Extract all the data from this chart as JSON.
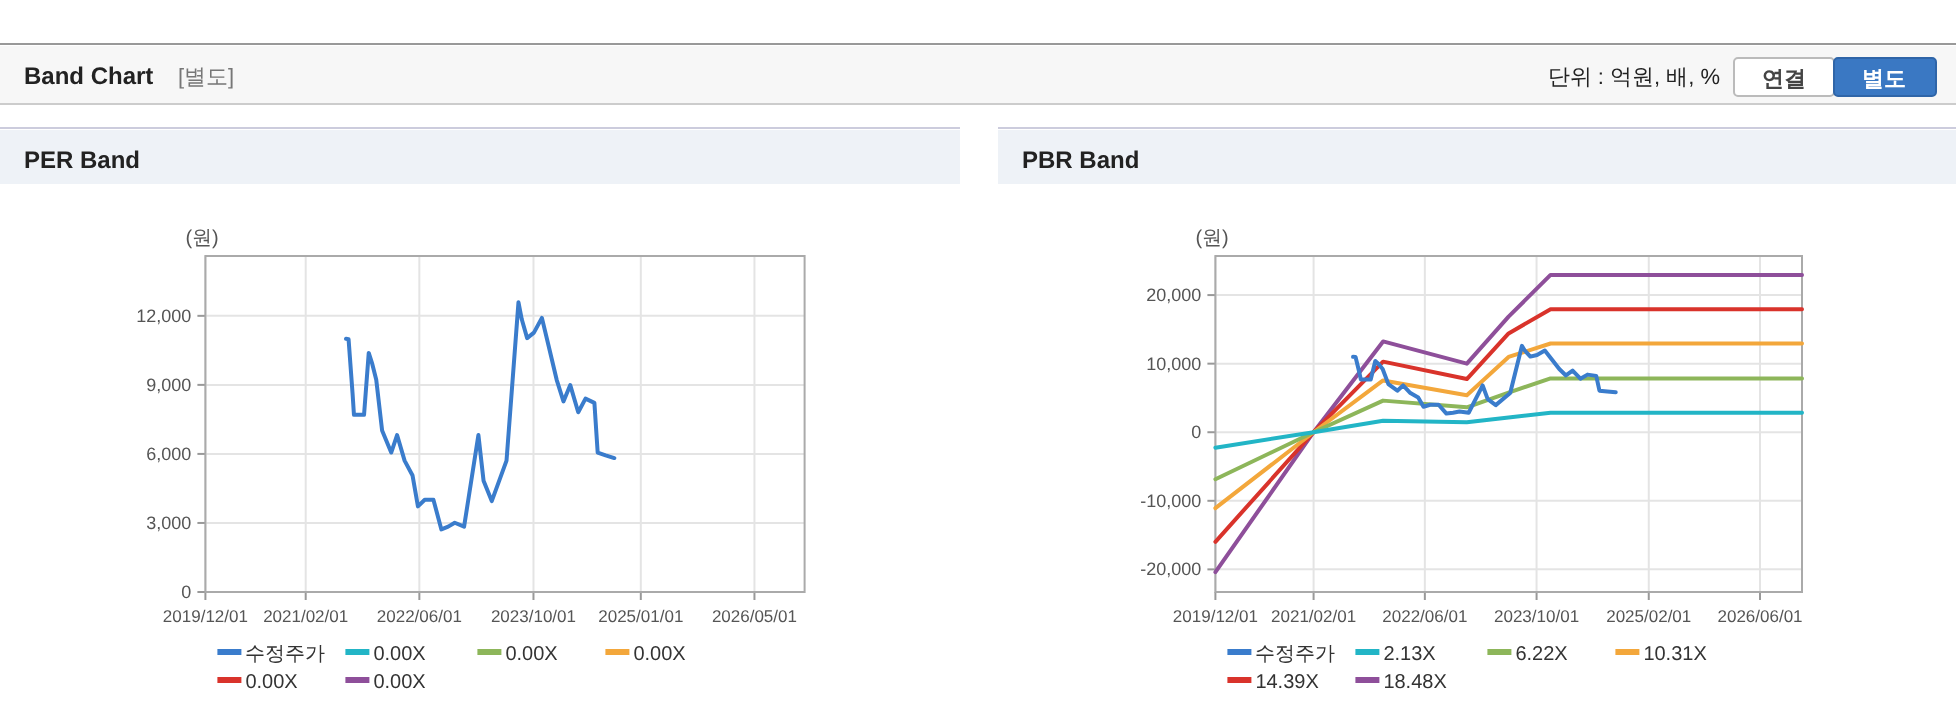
{
  "chart_data": [
    {
      "type": "other",
      "title": "Band Chart",
      "annotations": [
        "[별도]",
        "단위 : 억원, 배, %",
        "연결",
        "별도"
      ]
    },
    {
      "type": "line",
      "title": "PER Band",
      "ylabel": "(원)",
      "xlim": [
        "2019-12-01",
        "2026-12-01"
      ],
      "xticks": [
        {
          "value": "2019-12-01",
          "label": "2019/12/01"
        },
        {
          "value": "2021-02-01",
          "label": "2021/02/01"
        },
        {
          "value": "2022-06-01",
          "label": "2022/06/01"
        },
        {
          "value": "2023-10-01",
          "label": "2023/10/01"
        },
        {
          "value": "2025-01-01",
          "label": "2025/01/01"
        },
        {
          "value": "2026-05-01",
          "label": "2026/05/01"
        }
      ],
      "ylim": [
        0,
        14600
      ],
      "yticks": [
        {
          "value": 0,
          "label": "0"
        },
        {
          "value": 3000,
          "label": "3,000"
        },
        {
          "value": 6000,
          "label": "6,000"
        },
        {
          "value": 9000,
          "label": "9,000"
        },
        {
          "value": 12000,
          "label": "12,000"
        }
      ],
      "grid": true,
      "legend": "bottom",
      "series": [
        {
          "name": "수정주가",
          "color": "#3a7ccc",
          "x": [
            "2021-07-23",
            "2021-08-03",
            "2021-08-20",
            "2021-08-26",
            "2021-10-08",
            "2021-10-28",
            "2021-11-11",
            "2021-11-29",
            "2021-12-24",
            "2022-02-01",
            "2022-02-26",
            "2022-03-30",
            "2022-05-03",
            "2022-05-26",
            "2022-06-24",
            "2022-07-31",
            "2022-09-03",
            "2022-10-02",
            "2022-10-30",
            "2022-12-09",
            "2023-02-08",
            "2023-03-02",
            "2023-04-06",
            "2023-06-08",
            "2023-07-29",
            "2023-08-12",
            "2023-09-04",
            "2023-10-03",
            "2023-11-06",
            "2023-12-05",
            "2024-01-08",
            "2024-02-06",
            "2024-03-06",
            "2024-04-09",
            "2024-05-10",
            "2024-06-17",
            "2024-07-01",
            "2024-08-04",
            "2024-09-10"
          ],
          "values": [
            11000,
            10980,
            8630,
            7700,
            7700,
            10390,
            9950,
            9220,
            7020,
            6060,
            6820,
            5710,
            5060,
            3720,
            4010,
            4010,
            2720,
            2840,
            3010,
            2840,
            6820,
            4830,
            3950,
            5710,
            12590,
            11850,
            11030,
            11270,
            11910,
            10680,
            9220,
            8280,
            8990,
            7810,
            8400,
            8220,
            6060,
            5940,
            5820
          ]
        },
        {
          "name": "0.00X",
          "color": "#22b5c6"
        },
        {
          "name": "0.00X",
          "color": "#8db65a"
        },
        {
          "name": "0.00X",
          "color": "#f3a73b"
        },
        {
          "name": "0.00X",
          "color": "#d9332b"
        },
        {
          "name": "0.00X",
          "color": "#8e4f9a"
        }
      ]
    },
    {
      "type": "line",
      "title": "PBR Band",
      "ylabel": "(원)",
      "xlim": [
        "2019-12-01",
        "2026-12-01"
      ],
      "xticks": [
        {
          "value": "2019-12-01",
          "label": "2019/12/01"
        },
        {
          "value": "2021-02-01",
          "label": "2021/02/01"
        },
        {
          "value": "2022-06-01",
          "label": "2022/06/01"
        },
        {
          "value": "2023-10-01",
          "label": "2023/10/01"
        },
        {
          "value": "2025-02-01",
          "label": "2025/02/01"
        },
        {
          "value": "2026-06-01",
          "label": "2026/06/01"
        }
      ],
      "ylim": [
        -23300,
        25700
      ],
      "yticks": [
        {
          "value": -20000,
          "label": "-20,000"
        },
        {
          "value": -10000,
          "label": "-10,000"
        },
        {
          "value": 0,
          "label": "0"
        },
        {
          "value": 10000,
          "label": "10,000"
        },
        {
          "value": 20000,
          "label": "20,000"
        }
      ],
      "grid": true,
      "legend": "bottom",
      "series": [
        {
          "name": "수정주가",
          "color": "#3a7ccc",
          "x": [
            "2021-07-23",
            "2021-08-03",
            "2021-08-20",
            "2021-08-26",
            "2021-10-08",
            "2021-10-28",
            "2021-11-11",
            "2021-11-29",
            "2021-12-24",
            "2022-02-01",
            "2022-02-26",
            "2022-03-30",
            "2022-05-03",
            "2022-05-26",
            "2022-06-24",
            "2022-07-31",
            "2022-09-03",
            "2022-10-02",
            "2022-10-30",
            "2022-12-09",
            "2023-02-08",
            "2023-03-02",
            "2023-04-06",
            "2023-06-08",
            "2023-07-29",
            "2023-08-12",
            "2023-09-04",
            "2023-10-03",
            "2023-11-06",
            "2023-12-05",
            "2024-01-08",
            "2024-02-06",
            "2024-03-06",
            "2024-04-09",
            "2024-05-10",
            "2024-06-17",
            "2024-07-01",
            "2024-08-04",
            "2024-09-10"
          ],
          "values": [
            11000,
            10980,
            8630,
            7700,
            7700,
            10390,
            9950,
            9220,
            7020,
            6060,
            6820,
            5710,
            5060,
            3720,
            4010,
            4010,
            2720,
            2840,
            3010,
            2840,
            6820,
            4830,
            3950,
            5710,
            12590,
            11850,
            11030,
            11270,
            11910,
            10680,
            9220,
            8280,
            8990,
            7810,
            8400,
            8220,
            6060,
            5940,
            5820
          ]
        },
        {
          "name": "2.13X",
          "color": "#22b5c6",
          "x": [
            "2019-12-01",
            "2021-02-01",
            "2021-12-01",
            "2022-12-01",
            "2023-06-01",
            "2023-12-01",
            "2026-12-01"
          ],
          "values": [
            -2250,
            0,
            1670,
            1470,
            2160,
            2840,
            2840
          ]
        },
        {
          "name": "6.22X",
          "color": "#8db65a",
          "x": [
            "2019-12-01",
            "2021-02-01",
            "2021-12-01",
            "2022-12-01",
            "2023-06-01",
            "2023-12-01",
            "2026-12-01"
          ],
          "values": [
            -6860,
            0,
            4610,
            3630,
            5780,
            7840,
            7840
          ]
        },
        {
          "name": "10.31X",
          "color": "#f3a73b",
          "x": [
            "2019-12-01",
            "2021-02-01",
            "2021-12-01",
            "2022-12-01",
            "2023-06-01",
            "2023-12-01",
            "2026-12-01"
          ],
          "values": [
            -11080,
            0,
            7550,
            5390,
            10980,
            12940,
            12940
          ]
        },
        {
          "name": "14.39X",
          "color": "#d9332b",
          "x": [
            "2019-12-01",
            "2021-02-01",
            "2021-12-01",
            "2022-12-01",
            "2023-06-01",
            "2023-12-01",
            "2026-12-01"
          ],
          "values": [
            -15980,
            0,
            10290,
            7750,
            14410,
            17940,
            17940
          ]
        },
        {
          "name": "18.48X",
          "color": "#8e4f9a",
          "x": [
            "2019-12-01",
            "2021-02-01",
            "2021-12-01",
            "2022-12-01",
            "2023-06-01",
            "2023-12-01",
            "2026-12-01"
          ],
          "values": [
            -20390,
            0,
            13240,
            10000,
            16860,
            22940,
            22940
          ]
        }
      ]
    }
  ]
}
